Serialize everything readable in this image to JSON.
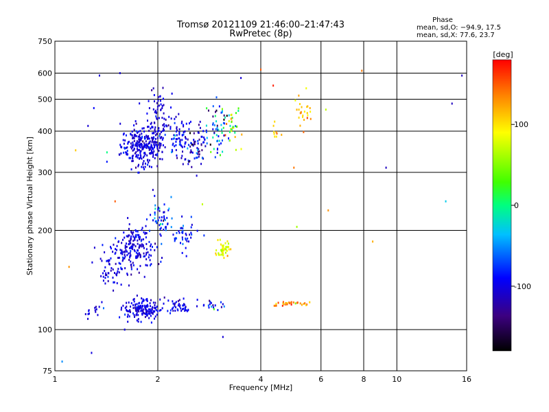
{
  "chart_data": {
    "type": "scatter",
    "title": "Tromsø 20121109 21:46:00–21:47:43",
    "subtitle": "RwPretec (8p)",
    "xlabel": "Frequency [MHz]",
    "ylabel": "Stationary phase Virtual Height [km]",
    "x_scale": "log",
    "y_scale": "log",
    "xlim": [
      1,
      16
    ],
    "ylim": [
      75,
      750
    ],
    "x_ticks": [
      1,
      2,
      4,
      6,
      8,
      10,
      16
    ],
    "y_ticks": [
      75,
      100,
      200,
      300,
      400,
      500,
      600,
      750
    ],
    "x_grid": [
      2,
      4,
      6,
      8,
      10
    ],
    "y_grid": [
      100,
      200,
      300,
      400,
      500,
      600
    ],
    "colorbar": {
      "label": "[deg]",
      "range": [
        -180,
        180
      ],
      "ticks": [
        100,
        0,
        -100
      ]
    },
    "stats": {
      "heading": "Phase",
      "line_o": "mean, sd,O: −94.9, 17.5",
      "line_x": "mean, sd,X:  77.6, 23.7"
    },
    "clusters": [
      {
        "x": 1.8,
        "y": 360,
        "sx": 0.07,
        "sy": 0.07,
        "phase": -105,
        "sp": 15,
        "n": 260
      },
      {
        "x": 1.98,
        "y": 430,
        "sx": 0.04,
        "sy": 0.12,
        "phase": -110,
        "sp": 12,
        "n": 90
      },
      {
        "x": 2.3,
        "y": 380,
        "sx": 0.05,
        "sy": 0.08,
        "phase": -100,
        "sp": 25,
        "n": 80
      },
      {
        "x": 2.6,
        "y": 370,
        "sx": 0.04,
        "sy": 0.08,
        "phase": -115,
        "sp": 30,
        "n": 60
      },
      {
        "x": 3.0,
        "y": 400,
        "sx": 0.04,
        "sy": 0.1,
        "phase": -90,
        "sp": 60,
        "n": 60
      },
      {
        "x": 3.3,
        "y": 420,
        "sx": 0.03,
        "sy": 0.08,
        "phase": 60,
        "sp": 60,
        "n": 30
      },
      {
        "x": 5.3,
        "y": 460,
        "sx": 0.03,
        "sy": 0.07,
        "phase": 110,
        "sp": 25,
        "n": 25
      },
      {
        "x": 1.7,
        "y": 175,
        "sx": 0.07,
        "sy": 0.08,
        "phase": -105,
        "sp": 15,
        "n": 200
      },
      {
        "x": 2.05,
        "y": 215,
        "sx": 0.04,
        "sy": 0.07,
        "phase": -85,
        "sp": 30,
        "n": 50
      },
      {
        "x": 2.4,
        "y": 190,
        "sx": 0.05,
        "sy": 0.05,
        "phase": -95,
        "sp": 25,
        "n": 40
      },
      {
        "x": 3.1,
        "y": 175,
        "sx": 0.02,
        "sy": 0.03,
        "phase": 85,
        "sp": 18,
        "n": 45
      },
      {
        "x": 1.45,
        "y": 150,
        "sx": 0.04,
        "sy": 0.05,
        "phase": -105,
        "sp": 15,
        "n": 40
      },
      {
        "x": 1.8,
        "y": 115,
        "sx": 0.06,
        "sy": 0.035,
        "phase": -105,
        "sp": 12,
        "n": 150
      },
      {
        "x": 2.3,
        "y": 118,
        "sx": 0.05,
        "sy": 0.03,
        "phase": -100,
        "sp": 20,
        "n": 45
      },
      {
        "x": 2.9,
        "y": 118,
        "sx": 0.05,
        "sy": 0.02,
        "phase": -85,
        "sp": 40,
        "n": 20
      },
      {
        "x": 4.9,
        "y": 120,
        "sx": 0.06,
        "sy": 0.01,
        "phase": 135,
        "sp": 25,
        "n": 30
      },
      {
        "x": 1.3,
        "y": 115,
        "sx": 0.04,
        "sy": 0.03,
        "phase": -100,
        "sp": 15,
        "n": 15
      },
      {
        "x": 4.4,
        "y": 400,
        "sx": 0.01,
        "sy": 0.03,
        "phase": 100,
        "sp": 20,
        "n": 8
      }
    ],
    "outliers": [
      [
        1.05,
        80,
        -50
      ],
      [
        1.1,
        155,
        130
      ],
      [
        1.15,
        350,
        110
      ],
      [
        1.3,
        470,
        -90
      ],
      [
        1.35,
        590,
        -110
      ],
      [
        1.55,
        600,
        -110
      ],
      [
        1.42,
        345,
        0
      ],
      [
        1.5,
        245,
        150
      ],
      [
        4.0,
        615,
        150
      ],
      [
        4.35,
        550,
        170
      ],
      [
        6.2,
        465,
        70
      ],
      [
        7.9,
        610,
        140
      ],
      [
        8.5,
        185,
        120
      ],
      [
        9.3,
        310,
        -120
      ],
      [
        13.9,
        245,
        -30
      ],
      [
        14.5,
        485,
        -120
      ],
      [
        15.5,
        590,
        -120
      ],
      [
        6.3,
        230,
        130
      ],
      [
        5.1,
        205,
        60
      ],
      [
        4.6,
        390,
        120
      ],
      [
        1.28,
        85,
        -105
      ],
      [
        1.6,
        100,
        -105
      ],
      [
        3.1,
        95,
        -110
      ],
      [
        5.0,
        310,
        140
      ],
      [
        1.25,
        415,
        -110
      ],
      [
        2.2,
        520,
        -100
      ],
      [
        3.5,
        580,
        -110
      ],
      [
        2.7,
        240,
        70
      ]
    ]
  }
}
